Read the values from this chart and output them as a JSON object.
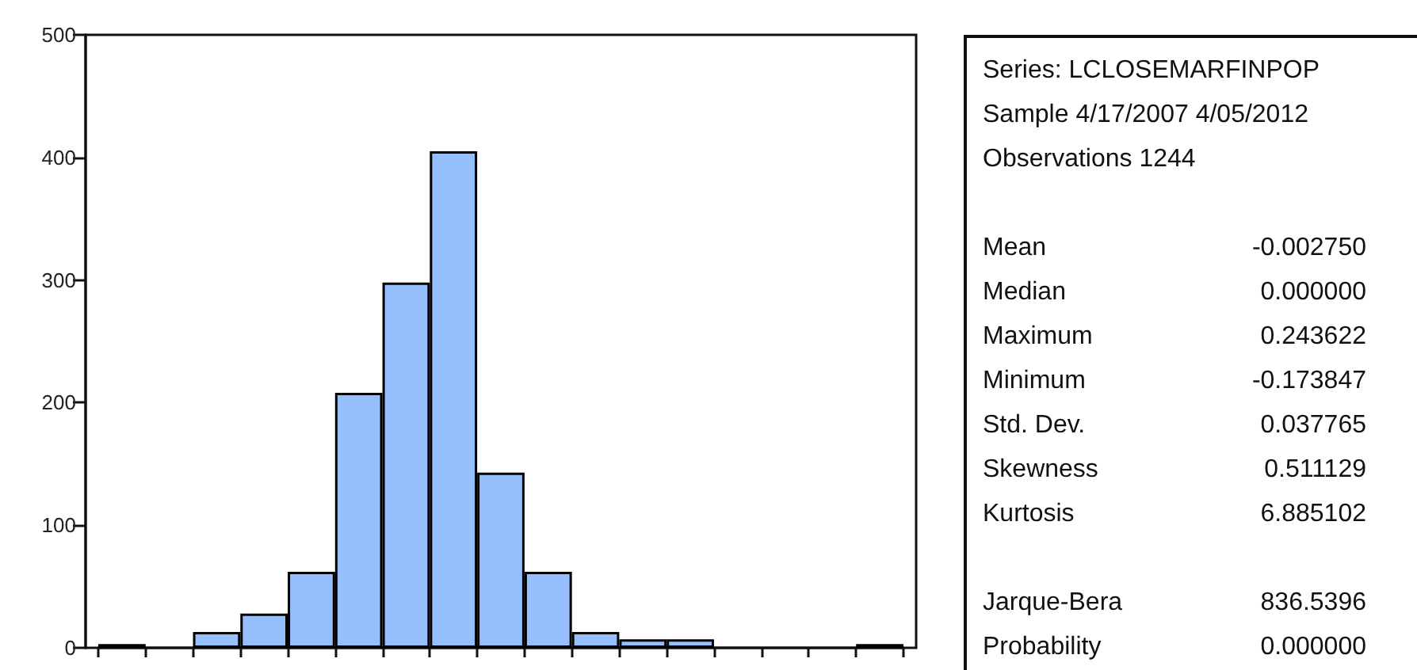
{
  "chart_data": [
    {
      "type": "histogram",
      "categories": [
        null,
        null,
        null,
        null,
        null,
        null,
        null,
        null,
        null,
        null,
        null,
        null,
        null,
        null,
        null,
        null,
        null
      ],
      "values": [
        3,
        0,
        13,
        28,
        62,
        208,
        298,
        405,
        143,
        62,
        13,
        7,
        7,
        0,
        0,
        0,
        3
      ],
      "color": "#96bffd",
      "ylim": [
        0,
        500
      ],
      "yticks": [
        0,
        100,
        200,
        300,
        400,
        500
      ],
      "tick_labels": "y"
    },
    {
      "type": "other",
      "annotations": [
        "Series: LCLOSEMARFINPOP",
        "Sample 4/17/2007 4/05/2012",
        "Observations 1244"
      ],
      "categories": [
        "Mean",
        "Median",
        "Maximum",
        "Minimum",
        "Std. Dev.",
        "Skewness",
        "Kurtosis",
        null,
        "Jarque-Bera",
        "Probability"
      ],
      "value_labels": [
        "-0.002750",
        "0.000000",
        "0.243622",
        "-0.173847",
        "0.037765",
        "0.511129",
        "6.885102",
        null,
        "836.5396",
        "0.000000"
      ]
    }
  ]
}
